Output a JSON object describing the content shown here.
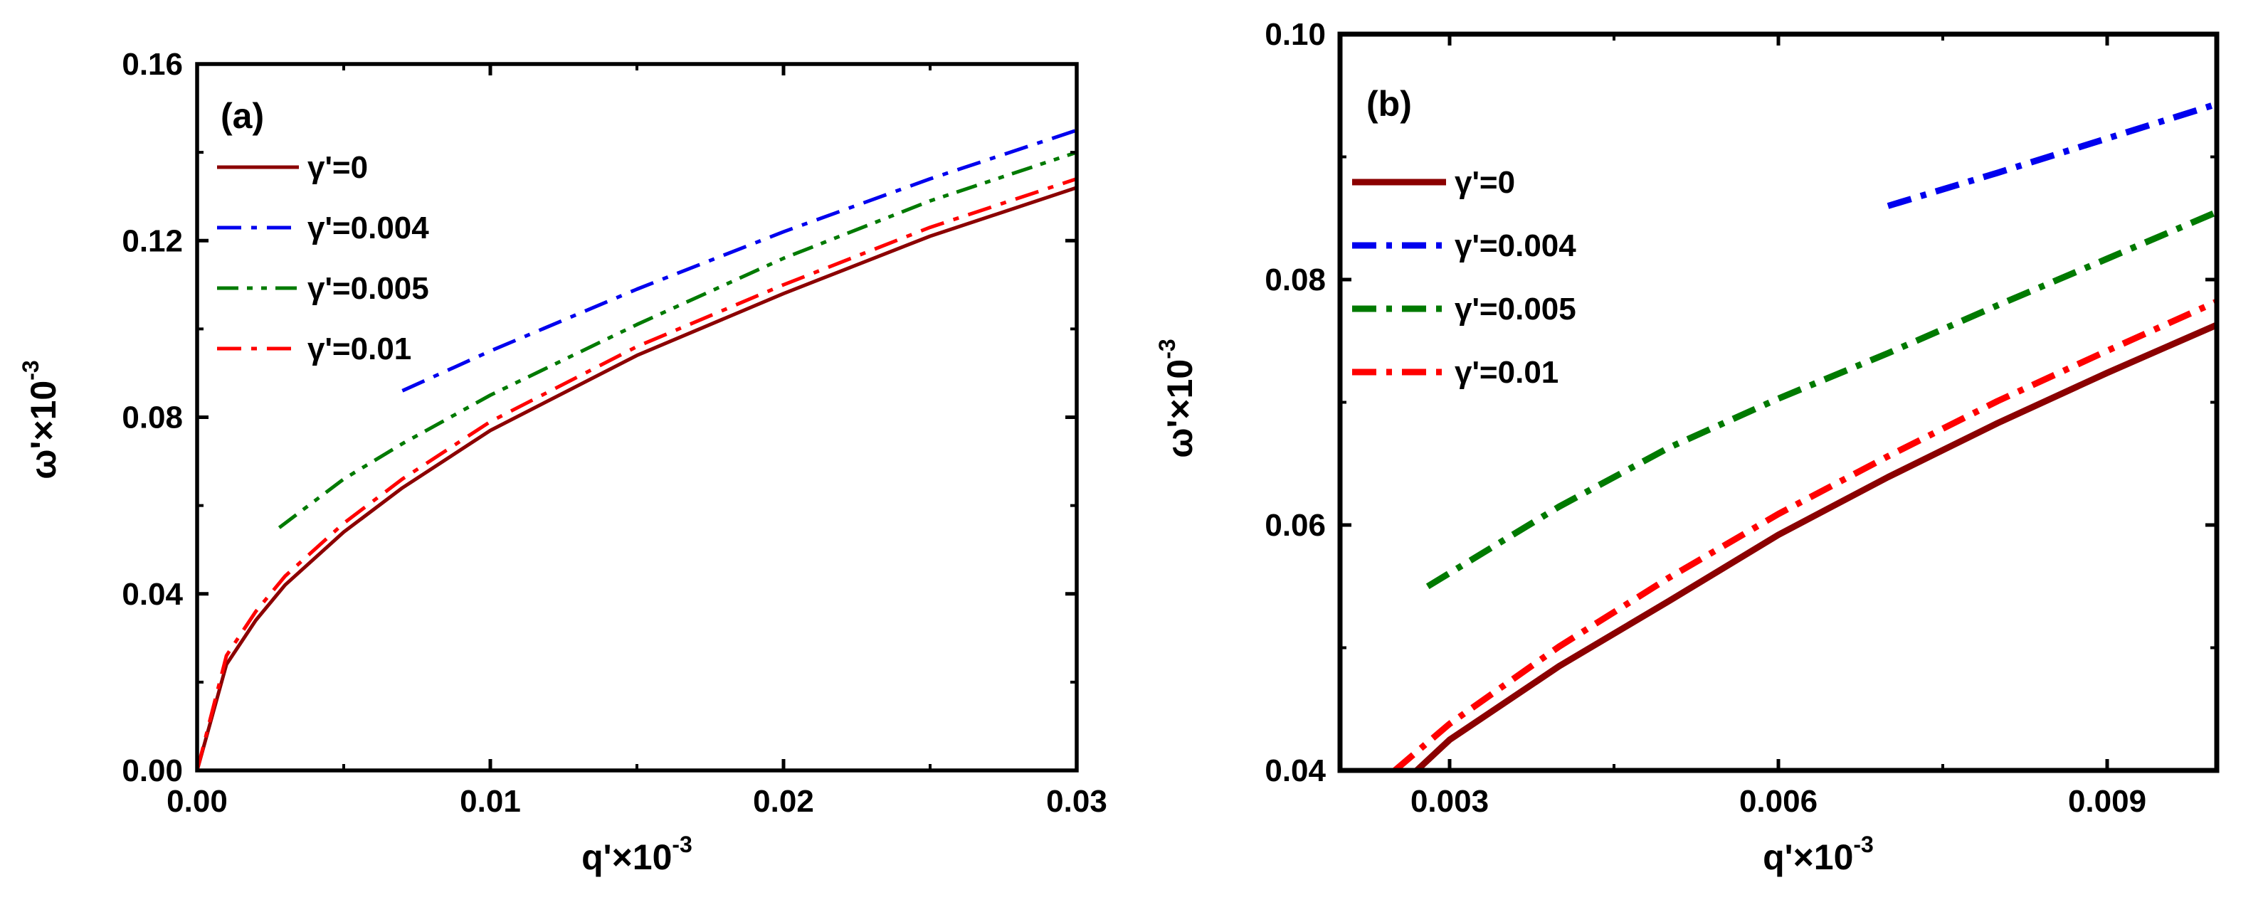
{
  "chart_data": [
    {
      "type": "line",
      "panel_label": "(a)",
      "xlabel": "q'×10",
      "xlabel_exp": "-3",
      "ylabel": "ω'×10",
      "ylabel_exp": "-3",
      "xlim": [
        0,
        0.03
      ],
      "ylim": [
        0,
        0.16
      ],
      "x_ticks": [
        0,
        0.01,
        0.02,
        0.03
      ],
      "x_tick_labels": [
        "0.00",
        "0.01",
        "0.02",
        "0.03"
      ],
      "y_ticks": [
        0,
        0.04,
        0.08,
        0.12,
        0.16
      ],
      "y_tick_labels": [
        "0.00",
        "0.04",
        "0.08",
        "0.12",
        "0.16"
      ],
      "grid": false,
      "legend_position": "top-left",
      "series": [
        {
          "name": "γ'=0",
          "color": "#8b0000",
          "dash": "solid",
          "x": [
            0,
            0.001,
            0.002,
            0.003,
            0.005,
            0.007,
            0.01,
            0.015,
            0.02,
            0.025,
            0.03
          ],
          "y": [
            0,
            0.024,
            0.034,
            0.042,
            0.054,
            0.064,
            0.077,
            0.094,
            0.108,
            0.121,
            0.132
          ]
        },
        {
          "name": "γ'=0.004",
          "color": "#0000ee",
          "dash": "dashdot",
          "x": [
            0.007,
            0.01,
            0.015,
            0.02,
            0.025,
            0.03
          ],
          "y": [
            0.086,
            0.095,
            0.109,
            0.122,
            0.134,
            0.145
          ]
        },
        {
          "name": "γ'=0.005",
          "color": "#007a00",
          "dash": "dashdotdot",
          "x": [
            0.0028,
            0.005,
            0.007,
            0.01,
            0.015,
            0.02,
            0.025,
            0.03
          ],
          "y": [
            0.055,
            0.066,
            0.074,
            0.085,
            0.101,
            0.116,
            0.129,
            0.14
          ]
        },
        {
          "name": "γ'=0.01",
          "color": "#ff0000",
          "dash": "dashdot",
          "x": [
            0,
            0.001,
            0.002,
            0.003,
            0.005,
            0.007,
            0.01,
            0.015,
            0.02,
            0.025,
            0.03
          ],
          "y": [
            0,
            0.026,
            0.036,
            0.044,
            0.056,
            0.066,
            0.079,
            0.096,
            0.11,
            0.123,
            0.134
          ]
        }
      ]
    },
    {
      "type": "line",
      "panel_label": "(b)",
      "xlabel": "q'×10",
      "xlabel_exp": "-3",
      "ylabel": "ω'×10",
      "ylabel_exp": "-3",
      "xlim": [
        0.002,
        0.01
      ],
      "ylim": [
        0.04,
        0.1
      ],
      "x_ticks": [
        0.003,
        0.006,
        0.009
      ],
      "x_tick_labels": [
        "0.003",
        "0.006",
        "0.009"
      ],
      "y_ticks": [
        0.04,
        0.06,
        0.08,
        0.1
      ],
      "y_tick_labels": [
        "0.04",
        "0.06",
        "0.08",
        "0.10"
      ],
      "grid": false,
      "legend_position": "top-left",
      "series": [
        {
          "name": "γ'=0",
          "color": "#8b0000",
          "dash": "solid",
          "x": [
            0.0027,
            0.003,
            0.004,
            0.005,
            0.006,
            0.007,
            0.008,
            0.009,
            0.01
          ],
          "y": [
            0.04,
            0.0425,
            0.0485,
            0.0538,
            0.0592,
            0.0639,
            0.0683,
            0.0724,
            0.0763
          ]
        },
        {
          "name": "γ'=0.004",
          "color": "#0000ee",
          "dash": "dashdot",
          "x": [
            0.007,
            0.008,
            0.009,
            0.01
          ],
          "y": [
            0.086,
            0.0887,
            0.0915,
            0.0943
          ]
        },
        {
          "name": "γ'=0.005",
          "color": "#007a00",
          "dash": "dashdot",
          "x": [
            0.0028,
            0.004,
            0.005,
            0.006,
            0.007,
            0.008,
            0.009,
            0.01
          ],
          "y": [
            0.055,
            0.0615,
            0.0663,
            0.0703,
            0.074,
            0.0779,
            0.0817,
            0.0855
          ]
        },
        {
          "name": "γ'=0.01",
          "color": "#ff0000",
          "dash": "dashdot",
          "x": [
            0.0025,
            0.003,
            0.004,
            0.005,
            0.006,
            0.007,
            0.008,
            0.009,
            0.01
          ],
          "y": [
            0.04,
            0.0438,
            0.0501,
            0.0557,
            0.0609,
            0.0656,
            0.0701,
            0.0742,
            0.0782
          ]
        }
      ]
    }
  ]
}
